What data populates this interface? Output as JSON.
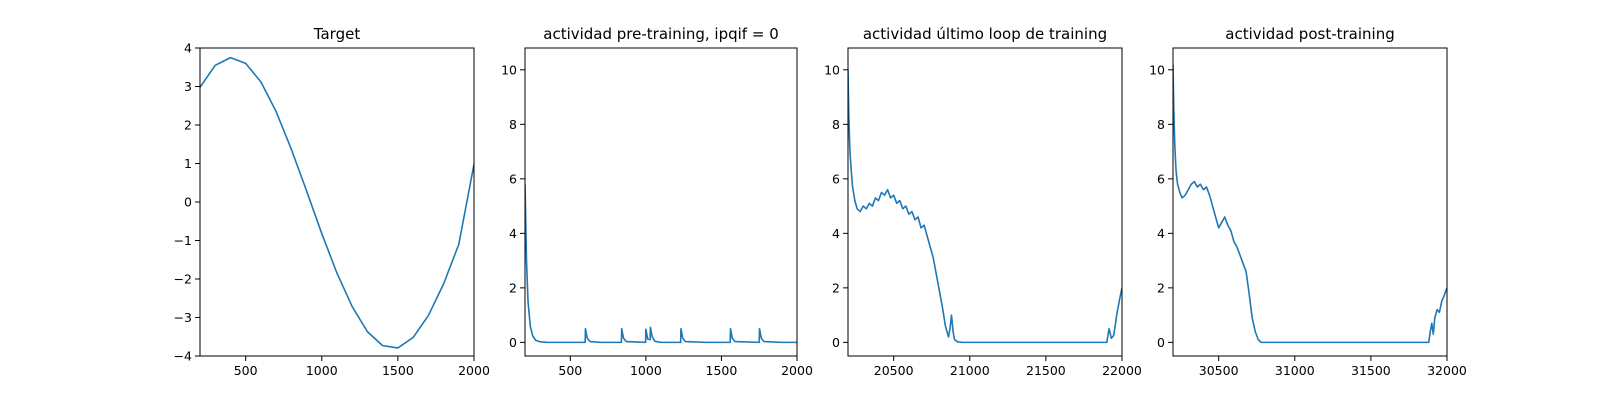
{
  "style": {
    "line_color": "#1f77b4"
  },
  "chart_data": [
    {
      "type": "line",
      "title": "Target",
      "xlim": [
        200,
        2000
      ],
      "ylim": [
        -4,
        4
      ],
      "xticks": [
        500,
        1000,
        1500,
        2000
      ],
      "yticks": [
        -4,
        -3,
        -2,
        -1,
        0,
        1,
        2,
        3,
        4
      ],
      "xtick_labels": [
        "500",
        "1000",
        "1500",
        "2000"
      ],
      "ytick_labels": [
        "−4",
        "−3",
        "−2",
        "−1",
        "0",
        "1",
        "2",
        "3",
        "4"
      ],
      "series": [
        {
          "x": [
            200,
            300,
            400,
            500,
            600,
            700,
            800,
            900,
            1000,
            1100,
            1200,
            1300,
            1400,
            1500,
            1600,
            1700,
            1800,
            1900,
            2000
          ],
          "y": [
            2.98,
            3.55,
            3.75,
            3.6,
            3.12,
            2.35,
            1.37,
            0.29,
            -0.82,
            -1.85,
            -2.72,
            -3.37,
            -3.73,
            -3.79,
            -3.52,
            -2.95,
            -2.13,
            -1.1,
            0.98
          ]
        }
      ]
    },
    {
      "type": "line",
      "title": "actividad pre-training, ipqif = 0",
      "xlim": [
        200,
        2000
      ],
      "ylim": [
        -0.5,
        10.8
      ],
      "xticks": [
        500,
        1000,
        1500,
        2000
      ],
      "yticks": [
        0,
        2,
        4,
        6,
        8,
        10
      ],
      "xtick_labels": [
        "500",
        "1000",
        "1500",
        "2000"
      ],
      "ytick_labels": [
        "0",
        "2",
        "4",
        "6",
        "8",
        "10"
      ],
      "series": [
        {
          "x": [
            200,
            210,
            220,
            235,
            250,
            270,
            300,
            350,
            400,
            500,
            598,
            600,
            612,
            630,
            700,
            838,
            840,
            852,
            870,
            998,
            1000,
            1012,
            1028,
            1030,
            1042,
            1060,
            1100,
            1230,
            1232,
            1244,
            1262,
            1400,
            1558,
            1560,
            1572,
            1590,
            1750,
            1752,
            1764,
            1782,
            1900,
            2000
          ],
          "y": [
            5.8,
            3.0,
            1.5,
            0.6,
            0.25,
            0.08,
            0.02,
            0.0,
            0.0,
            0.0,
            0.0,
            0.5,
            0.15,
            0.03,
            0.0,
            0.0,
            0.5,
            0.15,
            0.03,
            0.0,
            0.48,
            0.12,
            0.1,
            0.55,
            0.2,
            0.04,
            0.0,
            0.0,
            0.5,
            0.15,
            0.03,
            0.0,
            0.0,
            0.5,
            0.15,
            0.03,
            0.0,
            0.5,
            0.15,
            0.03,
            0.0,
            0.0
          ]
        }
      ]
    },
    {
      "type": "line",
      "title": "actividad último loop de training",
      "xlim": [
        20200,
        22000
      ],
      "ylim": [
        -0.5,
        10.8
      ],
      "xticks": [
        20500,
        21000,
        21500,
        22000
      ],
      "yticks": [
        0,
        2,
        4,
        6,
        8,
        10
      ],
      "xtick_labels": [
        "20500",
        "21000",
        "21500",
        "22000"
      ],
      "ytick_labels": [
        "0",
        "2",
        "4",
        "6",
        "8",
        "10"
      ],
      "series": [
        {
          "x": [
            20200,
            20205,
            20212,
            20220,
            20230,
            20245,
            20260,
            20280,
            20300,
            20320,
            20340,
            20360,
            20380,
            20400,
            20420,
            20440,
            20460,
            20480,
            20500,
            20520,
            20540,
            20560,
            20580,
            20600,
            20620,
            20640,
            20660,
            20680,
            20700,
            20720,
            20740,
            20760,
            20780,
            20800,
            20820,
            20840,
            20860,
            20870,
            20880,
            20890,
            20900,
            20920,
            20950,
            21000,
            21200,
            21400,
            21600,
            21800,
            21900,
            21915,
            21930,
            21945,
            21955,
            21965,
            21975,
            21985,
            22000
          ],
          "y": [
            10.0,
            8.4,
            7.1,
            6.4,
            5.7,
            5.2,
            4.9,
            4.8,
            5.0,
            4.9,
            5.1,
            5.0,
            5.3,
            5.2,
            5.5,
            5.4,
            5.6,
            5.3,
            5.4,
            5.1,
            5.2,
            4.9,
            5.0,
            4.7,
            4.8,
            4.5,
            4.6,
            4.2,
            4.3,
            3.9,
            3.5,
            3.1,
            2.5,
            1.9,
            1.3,
            0.6,
            0.2,
            0.5,
            1.0,
            0.4,
            0.1,
            0.02,
            0.0,
            0.0,
            0.0,
            0.0,
            0.0,
            0.0,
            0.0,
            0.5,
            0.15,
            0.25,
            0.6,
            1.0,
            1.3,
            1.6,
            2.0
          ]
        }
      ]
    },
    {
      "type": "line",
      "title": "actividad post-training",
      "xlim": [
        30200,
        32000
      ],
      "ylim": [
        -0.5,
        10.8
      ],
      "xticks": [
        30500,
        31000,
        31500,
        32000
      ],
      "yticks": [
        0,
        2,
        4,
        6,
        8,
        10
      ],
      "xtick_labels": [
        "30500",
        "31000",
        "31500",
        "32000"
      ],
      "ytick_labels": [
        "0",
        "2",
        "4",
        "6",
        "8",
        "10"
      ],
      "series": [
        {
          "x": [
            30200,
            30205,
            30212,
            30220,
            30230,
            30245,
            30260,
            30280,
            30300,
            30320,
            30340,
            30360,
            30380,
            30400,
            30420,
            30440,
            30460,
            30480,
            30500,
            30520,
            30540,
            30560,
            30580,
            30600,
            30620,
            30640,
            30660,
            30680,
            30700,
            30720,
            30740,
            30760,
            30780,
            30800,
            30830,
            30900,
            31100,
            31300,
            31500,
            31700,
            31880,
            31890,
            31900,
            31910,
            31920,
            31935,
            31950,
            31965,
            31980,
            32000
          ],
          "y": [
            10.2,
            8.6,
            7.2,
            6.3,
            5.8,
            5.5,
            5.3,
            5.4,
            5.6,
            5.8,
            5.9,
            5.7,
            5.8,
            5.6,
            5.7,
            5.4,
            5.0,
            4.6,
            4.2,
            4.4,
            4.6,
            4.3,
            4.1,
            3.7,
            3.5,
            3.2,
            2.9,
            2.6,
            1.8,
            0.9,
            0.4,
            0.1,
            0.0,
            0.0,
            0.0,
            0.0,
            0.0,
            0.0,
            0.0,
            0.0,
            0.0,
            0.4,
            0.7,
            0.3,
            0.9,
            1.2,
            1.1,
            1.5,
            1.7,
            2.0
          ]
        }
      ]
    }
  ]
}
